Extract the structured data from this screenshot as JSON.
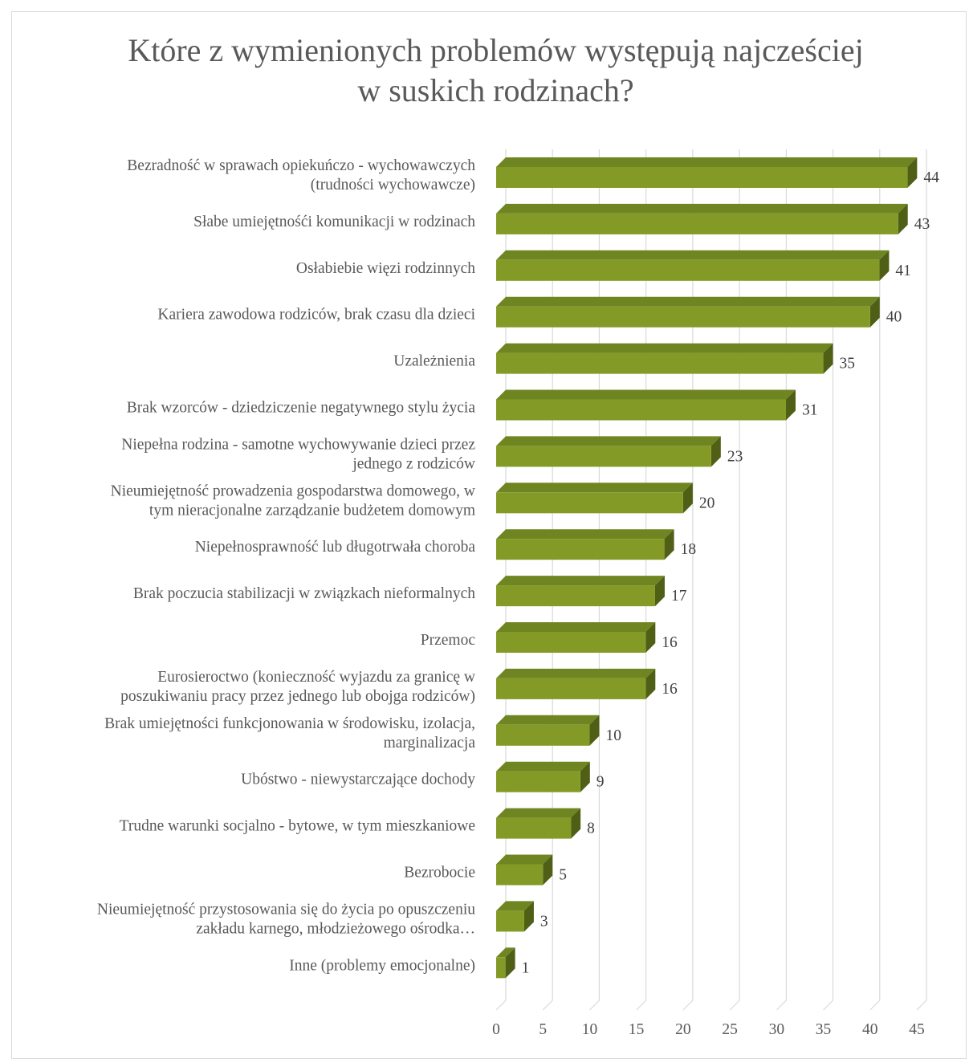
{
  "chart_data": {
    "type": "bar",
    "orientation": "horizontal",
    "title": [
      "Które z wymienionych problemów występują najcześciej",
      "w suskich rodzinach?"
    ],
    "categories": [
      [
        "Bezradność w sprawach opiekuńczo - wychowawczych",
        "(trudności wychowawcze)"
      ],
      [
        "Słabe umiejętnośći komunikacji w rodzinach"
      ],
      [
        "Osłabiebie więzi rodzinnych"
      ],
      [
        "Kariera zawodowa rodziców, brak czasu dla dzieci"
      ],
      [
        "Uzależnienia"
      ],
      [
        "Brak wzorców - dziedziczenie negatywnego stylu życia"
      ],
      [
        "Niepełna rodzina - samotne wychowywanie dzieci przez",
        "jednego z rodziców"
      ],
      [
        "Nieumiejętność prowadzenia gospodarstwa domowego, w",
        "tym nieracjonalne zarządzanie budżetem domowym"
      ],
      [
        "Niepełnosprawność lub długotrwała choroba"
      ],
      [
        "Brak poczucia stabilizacji w związkach nieformalnych"
      ],
      [
        "Przemoc"
      ],
      [
        "Eurosieroctwo (konieczność wyjazdu za granicę w",
        "poszukiwaniu pracy przez jednego lub obojga rodziców)"
      ],
      [
        "Brak umiejętności funkcjonowania w środowisku, izolacja,",
        "marginalizacja"
      ],
      [
        "Ubóstwo - niewystarczające dochody"
      ],
      [
        "Trudne warunki socjalno - bytowe, w tym mieszkaniowe"
      ],
      [
        "Bezrobocie"
      ],
      [
        "Nieumiejętność przystosowania się do życia po opuszczeniu",
        "zakładu karnego, młodzieżowego ośrodka…"
      ],
      [
        "Inne (problemy emocjonalne)"
      ]
    ],
    "values": [
      44,
      43,
      41,
      40,
      35,
      31,
      23,
      20,
      18,
      17,
      16,
      16,
      10,
      9,
      8,
      5,
      3,
      1
    ],
    "xlim": [
      0,
      45
    ],
    "xticks": [
      0,
      5,
      10,
      15,
      20,
      25,
      30,
      35,
      40,
      45
    ],
    "grid": true,
    "legend": "none",
    "bar_style": "3d",
    "colors": {
      "bar_front": "#839b26",
      "bar_top": "#6f8521",
      "bar_side": "#4f5f16",
      "grid": "#d9d9d9",
      "text": "#595959"
    }
  }
}
